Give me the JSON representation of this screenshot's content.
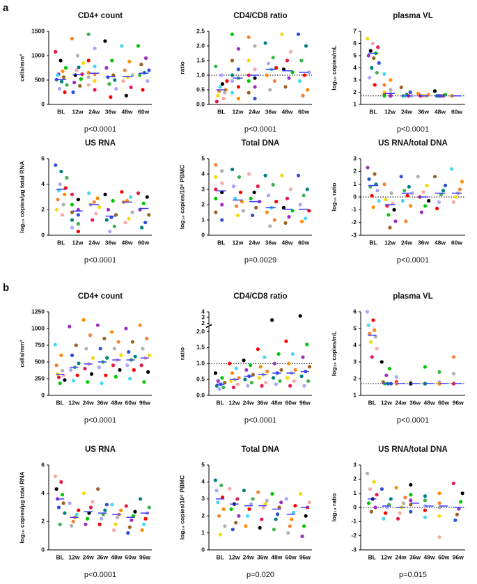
{
  "panel_labels": [
    "a",
    "b"
  ],
  "point_colors": [
    "#e6194b",
    "#3cb44b",
    "#f5d90a",
    "#2f4fd8",
    "#f58231",
    "#9b2fc4",
    "#46d8f0",
    "#000000",
    "#a6a6ff",
    "#f7a8a8",
    "#008080",
    "#b0b0b0",
    "#9a6324",
    "#ff8c00",
    "#00c800",
    "#ff0000"
  ],
  "median_color": "#3c3cff",
  "chart_data": [
    {
      "type": "strip",
      "title": "CD4+ count",
      "ylabel": "cells/mm³",
      "categories": [
        "BL",
        "12w",
        "24w",
        "36w",
        "48w",
        "60w"
      ],
      "ylim": [
        0,
        1500
      ],
      "yticks": [
        0,
        500,
        1000,
        1500
      ],
      "medians": [
        510,
        610,
        640,
        570,
        570,
        640
      ],
      "pvalue": "p<0.0001",
      "values": [
        [
          1080,
          900,
          750,
          620,
          560,
          510,
          470,
          400,
          320,
          250,
          600,
          680
        ],
        [
          1350,
          1000,
          850,
          700,
          620,
          600,
          520,
          450,
          380,
          250,
          760
        ],
        [
          1440,
          1150,
          900,
          780,
          650,
          620,
          560,
          480,
          400,
          300
        ],
        [
          1300,
          900,
          750,
          600,
          560,
          500,
          420,
          320,
          150
        ],
        [
          1200,
          880,
          700,
          600,
          560,
          480,
          350,
          180
        ],
        [
          1200,
          950,
          820,
          700,
          650,
          600,
          480,
          300
        ]
      ]
    },
    {
      "type": "strip",
      "title": "CD4/CD8 ratio",
      "ylabel": "ratio",
      "categories": [
        "BL",
        "12w",
        "24w",
        "36w",
        "48w",
        "60w"
      ],
      "ylim": [
        0,
        2.5
      ],
      "yticks": [
        {
          "value": 0,
          "label": "0.0"
        },
        0.5,
        {
          "value": 1,
          "label": "1.0"
        },
        1.5,
        {
          "value": 2,
          "label": "2.0"
        },
        2.5
      ],
      "ref_line": 1,
      "medians": [
        0.5,
        0.9,
        1.0,
        1.2,
        1.15,
        1.1
      ],
      "pvalue": "p<0.0001",
      "values": [
        [
          1.3,
          1.0,
          0.8,
          0.6,
          0.5,
          0.45,
          0.4,
          0.3,
          0.2,
          0.1,
          0.7
        ],
        [
          2.4,
          1.9,
          1.5,
          1.2,
          1.0,
          0.9,
          0.8,
          0.6,
          0.4,
          0.2
        ],
        [
          2.3,
          2.0,
          1.5,
          1.2,
          1.0,
          0.9,
          0.8,
          0.6,
          0.4,
          0.2
        ],
        [
          2.1,
          1.6,
          1.4,
          1.25,
          1.2,
          1.0,
          0.8,
          0.5
        ],
        [
          2.4,
          1.8,
          1.5,
          1.2,
          1.1,
          0.9,
          0.6
        ],
        [
          2.4,
          2.0,
          1.5,
          1.1,
          1.0,
          0.8,
          0.5,
          0.3
        ]
      ]
    },
    {
      "type": "strip",
      "title": "plasma VL",
      "ylabel": "log₁₀ copies/mL",
      "categories": [
        "BL",
        "12w",
        "24w",
        "36w",
        "48w",
        "60w"
      ],
      "ylim": [
        1,
        7
      ],
      "yticks": [
        1,
        2,
        3,
        4,
        5,
        6,
        7
      ],
      "ref_line": 1.7,
      "medians": [
        5.2,
        1.9,
        1.7,
        1.7,
        1.7,
        1.7
      ],
      "pvalue": "p<0.0001",
      "values": [
        [
          6.4,
          6.0,
          5.7,
          5.4,
          5.2,
          5.0,
          4.8,
          4.4,
          4.0,
          3.6,
          3.2,
          2.6
        ],
        [
          3.5,
          3.0,
          2.6,
          2.2,
          2.0,
          1.9,
          1.8,
          1.7,
          1.7,
          1.7
        ],
        [
          2.4,
          2.0,
          1.8,
          1.7,
          1.7,
          1.7,
          1.7
        ],
        [
          1.9,
          1.8,
          1.7,
          1.7,
          1.7,
          1.7
        ],
        [
          2.1,
          1.8,
          1.7,
          1.7,
          1.7,
          1.7
        ],
        [
          1.7,
          1.7,
          1.7,
          1.7,
          1.7
        ]
      ]
    },
    {
      "type": "strip",
      "title": "US RNA",
      "ylabel": "log₁₀ copies/μg total RNA",
      "categories": [
        "BL",
        "12w",
        "24w",
        "36w",
        "48w",
        "60w"
      ],
      "ylim": [
        0,
        6
      ],
      "yticks": [
        0,
        2,
        4,
        6
      ],
      "medians": [
        3.6,
        1.9,
        2.4,
        1.5,
        2.6,
        2.1
      ],
      "pvalue": "p<0.0001",
      "values": [
        [
          5.5,
          5.0,
          4.5,
          4.0,
          3.7,
          3.5,
          3.2,
          2.8,
          2.4,
          2.0,
          1.6
        ],
        [
          3.2,
          2.8,
          2.4,
          2.0,
          1.8,
          1.6,
          1.2,
          0.9,
          0.6,
          0.3
        ],
        [
          3.3,
          2.9,
          2.6,
          2.4,
          2.2,
          1.7,
          1.2
        ],
        [
          3.2,
          2.7,
          2.0,
          1.6,
          1.4,
          1.2,
          0.7,
          0.3
        ],
        [
          3.4,
          3.0,
          2.7,
          2.6,
          1.8,
          1.3,
          1.0
        ],
        [
          3.3,
          3.0,
          2.5,
          2.0,
          1.6,
          1.0,
          0.6
        ]
      ]
    },
    {
      "type": "strip",
      "title": "Total DNA",
      "ylabel": "log₁₀ copies/10⁶ PBMC",
      "categories": [
        "BL",
        "12w",
        "24w",
        "36w",
        "48w",
        "60w"
      ],
      "ylim": [
        0,
        5
      ],
      "yticks": [
        0,
        1,
        2,
        3,
        4,
        5
      ],
      "medians": [
        2.9,
        2.3,
        2.2,
        1.8,
        1.7,
        1.7
      ],
      "pvalue": "p=0.0029",
      "values": [
        [
          4.6,
          4.2,
          3.8,
          3.4,
          3.0,
          2.8,
          2.4,
          2.0,
          1.5,
          1.0
        ],
        [
          4.3,
          3.8,
          3.2,
          2.8,
          2.4,
          2.2,
          1.9,
          1.6,
          1.3
        ],
        [
          4.0,
          3.2,
          2.8,
          2.4,
          2.2,
          1.8,
          1.3
        ],
        [
          3.9,
          3.3,
          2.6,
          2.2,
          1.8,
          1.5,
          1.0,
          0.6
        ],
        [
          3.9,
          3.0,
          2.4,
          1.8,
          1.6,
          1.2,
          0.8
        ],
        [
          3.9,
          3.0,
          2.6,
          2.0,
          1.6,
          1.1,
          0.9
        ]
      ]
    },
    {
      "type": "strip",
      "title": "US RNA/total DNA",
      "ylabel": "log₁₀ ratio",
      "categories": [
        "BL",
        "12w",
        "24w",
        "36w",
        "48w",
        "60w"
      ],
      "ylim": [
        -3,
        3
      ],
      "yticks": [
        -3,
        -2,
        -1,
        0,
        1,
        2,
        3
      ],
      "ref_line": 0,
      "medians": [
        0.9,
        -0.6,
        0.3,
        0.0,
        0.3,
        0.3
      ],
      "pvalue": "p<0.0001",
      "values": [
        [
          2.3,
          1.8,
          1.4,
          1.0,
          0.8,
          0.5,
          0.1,
          -0.3,
          -0.8
        ],
        [
          1.0,
          0.3,
          -0.2,
          -0.5,
          -0.7,
          -1.0,
          -1.4,
          -1.9,
          -2.4
        ],
        [
          1.6,
          0.8,
          0.5,
          0.3,
          0.1,
          -0.3,
          -0.7,
          -1.9
        ],
        [
          1.6,
          0.9,
          0.4,
          0.0,
          -0.3,
          -0.7,
          -1.2
        ],
        [
          1.6,
          0.9,
          0.5,
          0.2,
          -0.4,
          -0.9
        ],
        [
          2.2,
          1.2,
          0.6,
          0.3,
          0.0,
          -0.4
        ]
      ]
    },
    {
      "type": "strip",
      "title": "CD4+ count",
      "ylabel": "cells/mm³",
      "categories": [
        "BL",
        "12w",
        "24w",
        "36w",
        "48w",
        "60w",
        "96w"
      ],
      "ylim": [
        0,
        1250
      ],
      "yticks": [
        0,
        250,
        500,
        750,
        1000,
        1250
      ],
      "medians": [
        310,
        420,
        470,
        500,
        530,
        530,
        560
      ],
      "pvalue": "p<0.0001",
      "values": [
        [
          760,
          600,
          450,
          370,
          320,
          300,
          270,
          230,
          180
        ],
        [
          1030,
          750,
          600,
          480,
          420,
          380,
          300,
          220
        ],
        [
          1130,
          900,
          700,
          560,
          470,
          400,
          320,
          200
        ],
        [
          1050,
          850,
          700,
          560,
          500,
          420,
          300,
          180
        ],
        [
          950,
          800,
          700,
          600,
          530,
          450,
          380,
          280
        ],
        [
          1000,
          800,
          650,
          580,
          530,
          450,
          380,
          250
        ],
        [
          1050,
          850,
          700,
          600,
          560,
          450,
          350,
          200
        ]
      ]
    },
    {
      "type": "strip",
      "title": "CD4/CD8 ratio",
      "ylabel": "ratio",
      "categories": [
        "BL",
        "12w",
        "24w",
        "36w",
        "48w",
        "60w",
        "96w"
      ],
      "ylim": [
        0,
        2.1
      ],
      "ylim_upper": [
        2,
        4
      ],
      "yticks": [
        {
          "value": 0,
          "label": "0.0"
        },
        0.5,
        {
          "value": 1,
          "label": "1.0"
        },
        1.5,
        {
          "value": 2,
          "label": "2.0"
        }
      ],
      "yticks_upper": [
        2,
        3,
        4
      ],
      "ref_line": 1,
      "medians": [
        0.35,
        0.5,
        0.6,
        0.65,
        0.7,
        0.7,
        0.75
      ],
      "pvalue": "p<0.0001",
      "values": [
        [
          0.7,
          0.55,
          0.45,
          0.4,
          0.35,
          0.3,
          0.25,
          0.2
        ],
        [
          1.0,
          0.85,
          0.7,
          0.55,
          0.5,
          0.45,
          0.35,
          0.25
        ],
        [
          1.1,
          0.95,
          0.8,
          0.65,
          0.6,
          0.5,
          0.4,
          0.3
        ],
        [
          1.45,
          1.2,
          0.9,
          0.75,
          0.65,
          0.55,
          0.4,
          0.3
        ],
        [
          2.6,
          1.3,
          1.0,
          0.8,
          0.7,
          0.55,
          0.45,
          0.35
        ],
        [
          1.7,
          1.3,
          1.0,
          0.8,
          0.7,
          0.55,
          0.45,
          0.3
        ],
        [
          3.3,
          1.6,
          1.2,
          0.9,
          0.75,
          0.6,
          0.45,
          0.3
        ]
      ]
    },
    {
      "type": "strip",
      "title": "plasma VL",
      "ylabel": "log₁₀ copies/mL",
      "categories": [
        "BL",
        "12w",
        "24w",
        "36w",
        "48w",
        "60w",
        "96w"
      ],
      "ylim": [
        1,
        6
      ],
      "yticks": [
        1,
        2,
        3,
        4,
        5,
        6
      ],
      "ref_line": 1.7,
      "medians": [
        4.6,
        1.7,
        1.7,
        1.7,
        1.7,
        1.7,
        1.7
      ],
      "pvalue": "p<0.0001",
      "values": [
        [
          6.0,
          5.5,
          5.2,
          4.9,
          4.7,
          4.5,
          4.2,
          3.8,
          3.3
        ],
        [
          3.0,
          2.6,
          2.2,
          1.8,
          1.7,
          1.7,
          1.7
        ],
        [
          2.1,
          1.8,
          1.7,
          1.7,
          1.7
        ],
        [
          1.8,
          1.7,
          1.7,
          1.7,
          1.7
        ],
        [
          2.7,
          1.7,
          1.7,
          1.7,
          1.7
        ],
        [
          2.4,
          1.8,
          1.7,
          1.7,
          1.7
        ],
        [
          3.3,
          2.3,
          1.7,
          1.7,
          1.7
        ]
      ]
    },
    {
      "type": "strip",
      "title": "US RNA",
      "ylabel": "log₁₀ copies/μg total RNA",
      "categories": [
        "BL",
        "12w",
        "24w",
        "36w",
        "48w",
        "60w",
        "96w"
      ],
      "ylim": [
        0,
        6
      ],
      "yticks": [
        0,
        2,
        4,
        6
      ],
      "medians": [
        3.6,
        2.3,
        2.7,
        2.6,
        2.5,
        2.3,
        2.6
      ],
      "pvalue": "p<0.0001",
      "values": [
        [
          5.2,
          4.8,
          4.3,
          3.9,
          3.6,
          3.3,
          3.0,
          2.6,
          1.8
        ],
        [
          3.3,
          2.8,
          2.5,
          2.3,
          2.0,
          1.7
        ],
        [
          4.0,
          3.4,
          3.0,
          2.6,
          2.2,
          1.8
        ],
        [
          4.3,
          3.2,
          2.8,
          2.5,
          2.2,
          1.8
        ],
        [
          3.2,
          2.8,
          2.5,
          2.3,
          1.8,
          1.4
        ],
        [
          3.1,
          2.7,
          2.4,
          2.1,
          1.6,
          1.2
        ],
        [
          3.6,
          3.0,
          2.6,
          2.2,
          1.8,
          1.4
        ]
      ]
    },
    {
      "type": "strip",
      "title": "Total DNA",
      "ylabel": "log₁₀ copies/10⁶ PBMC",
      "categories": [
        "BL",
        "12w",
        "24w",
        "36w",
        "48w",
        "60w",
        "96w"
      ],
      "ylim": [
        0,
        5
      ],
      "yticks": [
        0,
        1,
        2,
        3,
        4,
        5
      ],
      "medians": [
        3.0,
        2.7,
        2.6,
        2.6,
        2.4,
        2.1,
        2.5
      ],
      "pvalue": "p=0.020",
      "values": [
        [
          4.1,
          3.8,
          3.5,
          3.1,
          2.8,
          2.4,
          2.0,
          1.4,
          0.9
        ],
        [
          3.6,
          3.0,
          2.7,
          2.4,
          2.0,
          1.6,
          1.2
        ],
        [
          3.5,
          3.0,
          2.7,
          2.4,
          2.0,
          1.4
        ],
        [
          3.4,
          2.9,
          2.7,
          2.5,
          1.8,
          1.3
        ],
        [
          3.3,
          2.8,
          2.5,
          2.1,
          1.8,
          1.2
        ],
        [
          3.0,
          2.6,
          2.2,
          1.8,
          1.4,
          1.0
        ],
        [
          3.3,
          2.8,
          2.5,
          2.0,
          1.4,
          0.8
        ]
      ]
    },
    {
      "type": "strip",
      "title": "US RNA/total DNA",
      "ylabel": "log₁₀ ratio",
      "categories": [
        "BL",
        "12w",
        "24w",
        "36w",
        "48w",
        "60w",
        "96w"
      ],
      "ylim": [
        -3,
        3
      ],
      "yticks": [
        -3,
        -2,
        -1,
        0,
        1,
        2,
        3
      ],
      "ref_line": 0,
      "medians": [
        0.6,
        0.1,
        0.0,
        0.3,
        0.1,
        0.1,
        0.0
      ],
      "pvalue": "p=0.015",
      "values": [
        [
          2.4,
          1.8,
          1.3,
          0.9,
          0.6,
          0.3,
          0.0,
          -0.3
        ],
        [
          1.3,
          0.6,
          0.2,
          0.0,
          -0.4,
          -0.8
        ],
        [
          1.4,
          0.7,
          0.3,
          0.0,
          -0.4,
          -0.8
        ],
        [
          1.6,
          0.9,
          0.5,
          0.2,
          -0.3
        ],
        [
          0.8,
          0.5,
          0.1,
          -0.2,
          -0.7
        ],
        [
          1.0,
          0.3,
          0.0,
          -0.6,
          -2.1
        ],
        [
          1.7,
          1.0,
          0.4,
          -0.1,
          -0.5,
          -0.9
        ]
      ]
    }
  ]
}
